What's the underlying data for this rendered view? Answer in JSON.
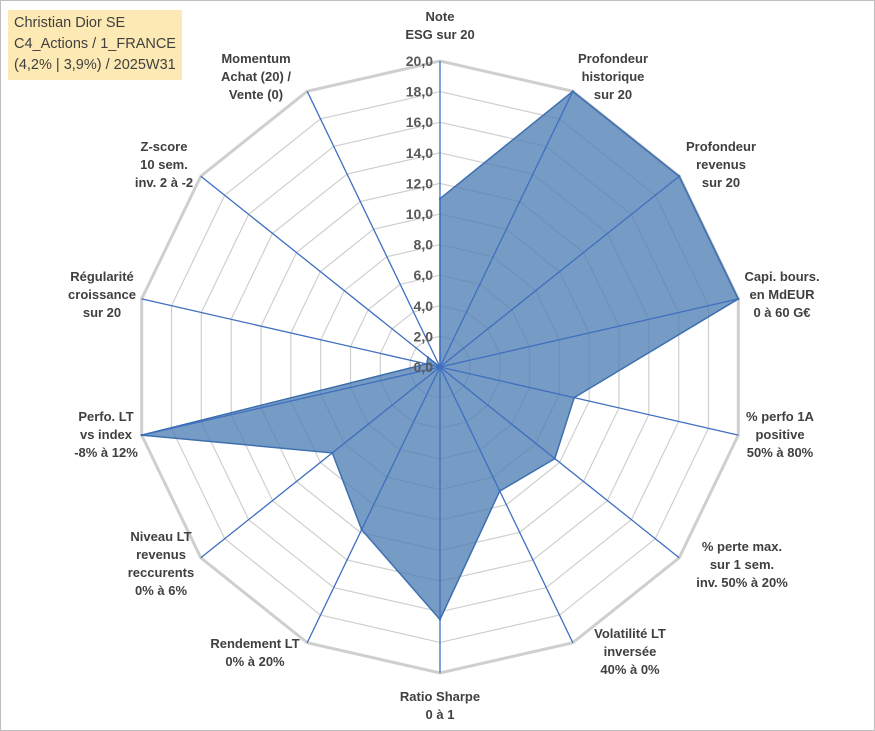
{
  "title_lines": [
    "Christian Dior SE",
    "C4_Actions / 1_FRANCE",
    "(4,2% | 3,9%) / 2025W31"
  ],
  "chart_data": {
    "type": "radar",
    "title": "",
    "axes": [
      [
        "Note",
        "ESG sur 20"
      ],
      [
        "Profondeur",
        "historique",
        "sur 20"
      ],
      [
        "Profondeur",
        "revenus",
        "sur 20"
      ],
      [
        "Capi. bours.",
        "en MdEUR",
        "0 à 60 G€"
      ],
      [
        "% perfo 1A",
        "positive",
        "50% à 80%"
      ],
      [
        "% perte max.",
        "sur 1 sem.",
        "inv. 50% à 20%"
      ],
      [
        "Volatilité LT",
        "inversée",
        "40% à 0%"
      ],
      [
        "Ratio Sharpe",
        "0 à 1"
      ],
      [
        "Rendement LT",
        "0% à 20%"
      ],
      [
        "Niveau LT",
        "revenus",
        "reccurents",
        "0% à 6%"
      ],
      [
        "Perfo. LT",
        "vs index",
        "-8% à 12%"
      ],
      [
        "Régularité",
        "croissance",
        "sur 20"
      ],
      [
        "Z-score",
        "10 sem.",
        "inv. 2 à -2"
      ],
      [
        "Momentum",
        "Achat (20) /",
        "Vente (0)"
      ]
    ],
    "values": [
      11.0,
      20.0,
      20.0,
      20.0,
      9.0,
      9.6,
      9.0,
      16.5,
      11.8,
      9.0,
      20.0,
      0.9,
      1.0,
      0.0
    ],
    "rmin": 0,
    "rmax": 20,
    "tick_step": 2,
    "tick_labels": [
      "0,0",
      "2,0",
      "4,0",
      "6,0",
      "8,0",
      "10,0",
      "12,0",
      "14,0",
      "16,0",
      "18,0",
      "20,0"
    ],
    "colors": {
      "fill": "#4f7fb5",
      "stroke": "#3e70b0",
      "grid": "#cfcfcf",
      "spoke": "#3f6fbf"
    }
  }
}
